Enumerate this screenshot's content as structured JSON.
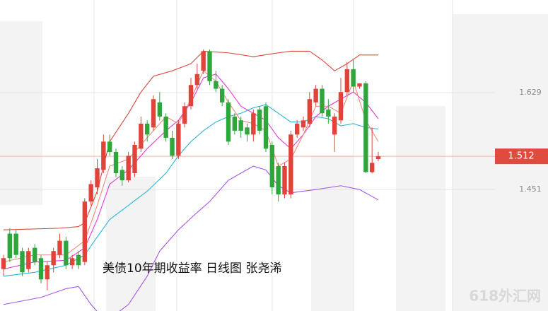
{
  "chart_data": {
    "type": "candlestick",
    "annotation": "美债10年期收益率  日线图  张尧浠",
    "watermark": "618外汇网",
    "ylim": [
      1.228,
      1.799
    ],
    "yticks": [
      1.451,
      1.629
    ],
    "grid": true,
    "last_price": 1.512,
    "last_price_color": "#e04b3f",
    "up_color": "#e0433a",
    "down_color": "#2ea63b",
    "open": [
      1.305,
      1.37,
      1.37,
      1.338,
      1.305,
      1.344,
      1.325,
      1.286,
      1.312,
      1.331,
      1.357,
      1.312,
      1.331,
      1.318,
      1.429,
      1.455,
      1.487,
      1.539,
      1.52,
      1.487,
      1.468,
      1.481,
      1.526,
      1.572,
      1.565,
      1.611,
      1.585,
      1.546,
      1.513,
      1.572,
      1.604,
      1.643,
      1.669,
      1.705,
      1.65,
      1.636,
      1.611,
      1.585,
      1.578,
      1.565,
      1.552,
      1.598,
      1.604,
      1.533,
      1.494,
      1.442,
      1.442,
      1.552,
      1.565,
      1.572,
      1.611,
      1.636,
      1.598,
      1.552,
      1.578,
      1.63,
      1.672,
      1.64,
      1.646,
      1.483,
      1.507
    ],
    "high": [
      1.331,
      1.38,
      1.377,
      1.344,
      1.344,
      1.351,
      1.331,
      1.318,
      1.344,
      1.37,
      1.364,
      1.331,
      1.338,
      1.435,
      1.468,
      1.507,
      1.552,
      1.552,
      1.526,
      1.494,
      1.52,
      1.539,
      1.585,
      1.578,
      1.624,
      1.63,
      1.591,
      1.559,
      1.578,
      1.611,
      1.656,
      1.682,
      1.708,
      1.708,
      1.669,
      1.643,
      1.617,
      1.591,
      1.585,
      1.572,
      1.598,
      1.604,
      1.611,
      1.539,
      1.5,
      1.5,
      1.559,
      1.578,
      1.585,
      1.63,
      1.643,
      1.643,
      1.617,
      1.591,
      1.656,
      1.685,
      1.689,
      1.646,
      1.65,
      1.565,
      1.52
    ],
    "low": [
      1.292,
      1.318,
      1.325,
      1.292,
      1.299,
      1.312,
      1.279,
      1.266,
      1.299,
      1.325,
      1.305,
      1.305,
      1.305,
      1.312,
      1.422,
      1.442,
      1.481,
      1.513,
      1.474,
      1.458,
      1.464,
      1.474,
      1.52,
      1.539,
      1.559,
      1.578,
      1.539,
      1.507,
      1.507,
      1.565,
      1.598,
      1.636,
      1.663,
      1.643,
      1.63,
      1.604,
      1.533,
      1.552,
      1.546,
      1.539,
      1.539,
      1.552,
      1.52,
      1.442,
      1.429,
      1.435,
      1.435,
      1.546,
      1.559,
      1.565,
      1.604,
      1.585,
      1.572,
      1.52,
      1.572,
      1.624,
      1.63,
      1.636,
      1.481,
      1.481,
      1.503
    ],
    "close": [
      1.325,
      1.325,
      1.331,
      1.299,
      1.338,
      1.318,
      1.286,
      1.312,
      1.338,
      1.357,
      1.312,
      1.325,
      1.312,
      1.429,
      1.461,
      1.49,
      1.539,
      1.52,
      1.481,
      1.468,
      1.513,
      1.533,
      1.572,
      1.552,
      1.617,
      1.585,
      1.546,
      1.513,
      1.572,
      1.604,
      1.643,
      1.663,
      1.705,
      1.65,
      1.636,
      1.611,
      1.539,
      1.559,
      1.559,
      1.552,
      1.591,
      1.559,
      1.526,
      1.455,
      1.442,
      1.494,
      1.552,
      1.572,
      1.578,
      1.617,
      1.636,
      1.591,
      1.585,
      1.585,
      1.63,
      1.672,
      1.64,
      1.646,
      1.483,
      1.5,
      1.512
    ],
    "lines": [
      {
        "color": "#d9473c",
        "x": [
          0,
          9,
          12,
          13,
          15,
          17,
          20,
          22,
          24,
          27,
          30,
          32,
          36,
          40,
          44,
          46,
          49,
          51,
          53,
          55,
          57,
          60
        ],
        "values": [
          1.377,
          1.38,
          1.383,
          1.39,
          1.448,
          1.539,
          1.591,
          1.63,
          1.659,
          1.669,
          1.682,
          1.705,
          1.702,
          1.695,
          1.702,
          1.705,
          1.705,
          1.689,
          1.669,
          1.682,
          1.698,
          1.698
        ]
      },
      {
        "color": "#a557e8",
        "x": [
          0,
          6,
          10,
          12,
          14,
          15,
          17,
          20,
          23,
          25,
          28,
          31,
          33,
          36,
          40,
          42,
          44,
          46,
          50,
          54,
          57,
          60
        ],
        "values": [
          1.24,
          1.253,
          1.269,
          1.273,
          1.24,
          1.227,
          1.214,
          1.24,
          1.292,
          1.338,
          1.377,
          1.409,
          1.429,
          1.468,
          1.494,
          1.487,
          1.458,
          1.445,
          1.451,
          1.458,
          1.451,
          1.432
        ]
      },
      {
        "color": "#2bb5d8",
        "x": [
          0,
          5,
          10,
          13,
          15,
          17,
          20,
          23,
          26,
          28,
          30,
          32,
          34,
          36,
          38,
          40,
          42,
          44,
          46,
          48,
          50,
          52,
          54,
          56,
          58,
          60
        ],
        "values": [
          1.292,
          1.299,
          1.312,
          1.331,
          1.364,
          1.396,
          1.422,
          1.448,
          1.481,
          1.513,
          1.539,
          1.559,
          1.575,
          1.585,
          1.591,
          1.601,
          1.607,
          1.591,
          1.575,
          1.575,
          1.585,
          1.581,
          1.568,
          1.572,
          1.565,
          1.562
        ]
      },
      {
        "color": "#e53bd6",
        "x": [
          0,
          5,
          10,
          13,
          15,
          17,
          20,
          23,
          26,
          28,
          30,
          32,
          34,
          36,
          38,
          40,
          42,
          44,
          46,
          48,
          50,
          52,
          54,
          56,
          58,
          60
        ],
        "values": [
          1.305,
          1.318,
          1.321,
          1.344,
          1.396,
          1.461,
          1.487,
          1.526,
          1.559,
          1.578,
          1.611,
          1.656,
          1.663,
          1.636,
          1.604,
          1.591,
          1.578,
          1.546,
          1.526,
          1.552,
          1.585,
          1.604,
          1.617,
          1.63,
          1.611,
          1.581
        ]
      },
      {
        "color": "#f08a78",
        "x": [
          0,
          5,
          10,
          13,
          15,
          17,
          20,
          23,
          26,
          28,
          30,
          32,
          34,
          36,
          38,
          40,
          42,
          44,
          46,
          48,
          50,
          52,
          54,
          56,
          58,
          60
        ],
        "values": [
          1.318,
          1.331,
          1.331,
          1.357,
          1.422,
          1.494,
          1.507,
          1.546,
          1.585,
          1.572,
          1.617,
          1.669,
          1.65,
          1.611,
          1.578,
          1.572,
          1.559,
          1.494,
          1.507,
          1.552,
          1.604,
          1.604,
          1.591,
          1.65,
          1.578,
          1.539
        ]
      }
    ]
  }
}
